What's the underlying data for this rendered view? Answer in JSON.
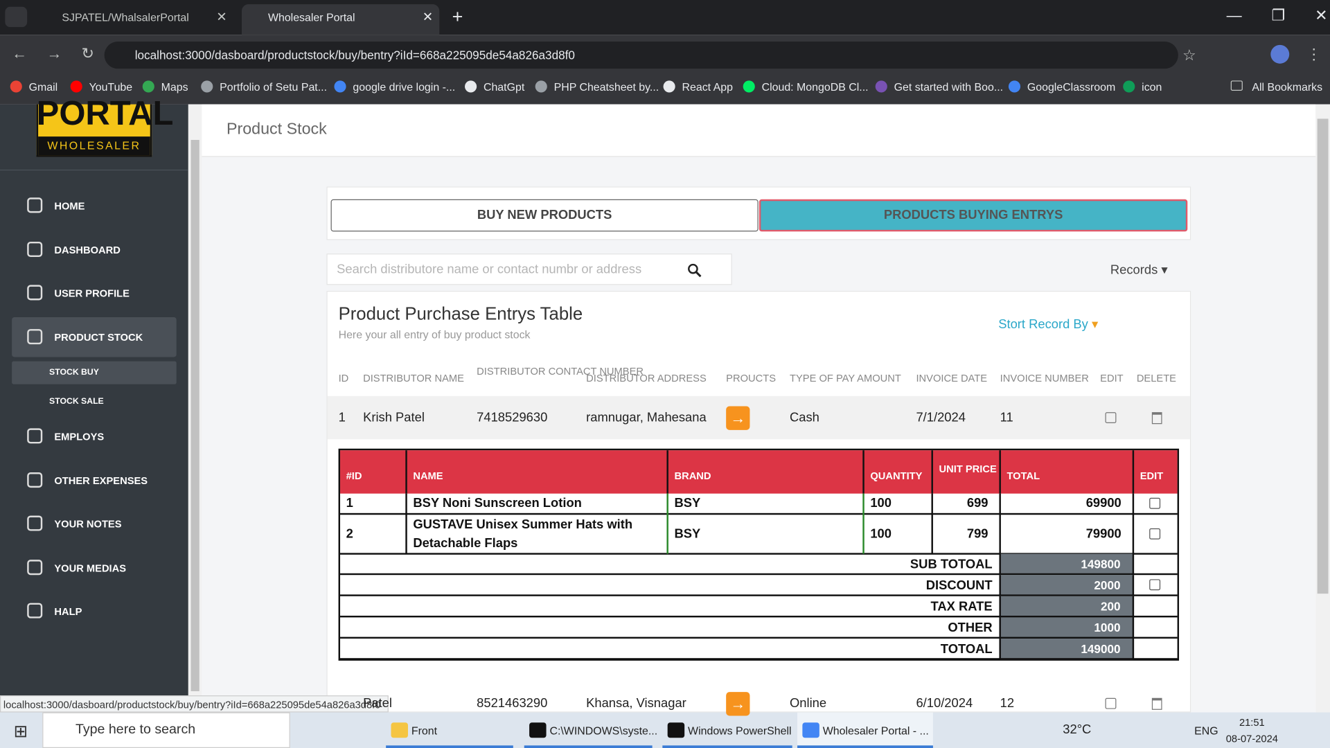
{
  "browser": {
    "tabs": [
      "SJPATEL/WhalsalerPortal",
      "Wholesaler Portal"
    ],
    "url": "localhost:3000/dasboard/productstock/buy/bentry?iId=668a225095de54a826a3d8f0",
    "bookmarks": [
      "Gmail",
      "YouTube",
      "Maps",
      "Portfolio of Setu Pat...",
      "google drive login -...",
      "ChatGpt",
      "PHP Cheatsheet by...",
      "React App",
      "Cloud: MongoDB Cl...",
      "Get started with Boo...",
      "GoogleClassroom",
      "icon"
    ],
    "all_bookmarks": "All Bookmarks",
    "status_url": "localhost:3000/dasboard/productstock/buy/bentry?iId=668a225095de54a826a3d8f0"
  },
  "sidebar": {
    "logo": [
      "PORTAL",
      "WHOLESALER"
    ],
    "nav": [
      "HOME",
      "DASHBOARD",
      "USER PROFILE",
      "PRODUCT STOCK",
      "STOCK BUY",
      "STOCK SALE",
      "EMPLOYS",
      "OTHER EXPENSES",
      "YOUR NOTES",
      "YOUR MEDIAS",
      "HALP"
    ]
  },
  "header": {
    "title": "Product Stock"
  },
  "tabs": [
    "BUY NEW PRODUCTS",
    "PRODUCTS BUYING ENTRYS"
  ],
  "search": {
    "placeholder": "Search distributore name or contact numbr or address",
    "records": "Records"
  },
  "table": {
    "title": "Product Purchase Entrys Table",
    "subtitle": "Here your all entry of buy product stock",
    "sort": "Stort Record By",
    "columns": [
      "ID",
      "DISTRIBUTOR NAME",
      "DISTRIBUTOR CONTACT NUMBER",
      "DISTRIBUTOR ADDRESS",
      "PROUCTS",
      "TYPE OF PAY AMOUNT",
      "INVOICE DATE",
      "INVOICE NUMBER",
      "EDIT",
      "DELETE"
    ],
    "rows": [
      {
        "id": "1",
        "name": "Krish Patel",
        "contact": "7418529630",
        "address": "ramnugar, Mahesana",
        "pay": "Cash",
        "date": "7/1/2024",
        "invoice": "11"
      },
      {
        "name": "Patel",
        "contact": "8521463290",
        "address": "Khansa, Visnagar",
        "pay": "Online",
        "date": "6/10/2024",
        "invoice": "12"
      }
    ]
  },
  "detail": {
    "columns": [
      "#ID",
      "NAME",
      "BRAND",
      "QUANTITY",
      "UNIT PRICE",
      "TOTAL",
      "EDIT"
    ],
    "items": [
      [
        "1",
        "BSY Noni Sunscreen Lotion",
        "BSY",
        "100",
        "699",
        "69900"
      ],
      [
        "2",
        "GUSTAVE Unisex Summer Hats with Detachable Flaps",
        "BSY",
        "100",
        "799",
        "79900"
      ]
    ],
    "summary": [
      {
        "label": "SUB TOTOAL",
        "value": "149800"
      },
      {
        "label": "DISCOUNT",
        "value": "2000"
      },
      {
        "label": "TAX RATE",
        "value": "200"
      },
      {
        "label": "OTHER",
        "value": "1000"
      },
      {
        "label": "TOTOAL",
        "value": "149000"
      }
    ]
  },
  "taskbar": {
    "search": "Type here to search",
    "apps": [
      "Front",
      "C:\\WINDOWS\\syste...",
      "Windows PowerShell",
      "Wholesaler Portal - ..."
    ],
    "weather": "32°C",
    "lang": "ENG",
    "time": "21:51",
    "date": "08-07-2024"
  }
}
